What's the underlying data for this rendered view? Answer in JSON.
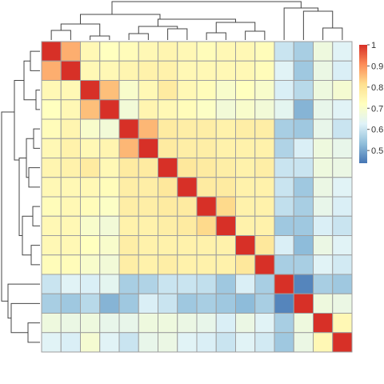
{
  "chart_data": {
    "type": "heatmap",
    "rows": 16,
    "cols": 16,
    "values": [
      [
        1.0,
        0.87,
        0.74,
        0.72,
        0.73,
        0.74,
        0.75,
        0.74,
        0.73,
        0.74,
        0.74,
        0.73,
        0.6,
        0.56,
        0.67,
        0.63
      ],
      [
        0.87,
        1.0,
        0.74,
        0.74,
        0.75,
        0.76,
        0.76,
        0.74,
        0.74,
        0.74,
        0.74,
        0.73,
        0.63,
        0.55,
        0.66,
        0.62
      ],
      [
        0.74,
        0.74,
        1.0,
        0.85,
        0.7,
        0.74,
        0.78,
        0.74,
        0.73,
        0.7,
        0.72,
        0.7,
        0.62,
        0.58,
        0.67,
        0.69
      ],
      [
        0.72,
        0.74,
        0.85,
        1.0,
        0.68,
        0.75,
        0.74,
        0.73,
        0.71,
        0.68,
        0.7,
        0.68,
        0.64,
        0.52,
        0.65,
        0.63
      ],
      [
        0.73,
        0.75,
        0.7,
        0.68,
        1.0,
        0.86,
        0.78,
        0.77,
        0.77,
        0.76,
        0.77,
        0.77,
        0.56,
        0.55,
        0.65,
        0.6
      ],
      [
        0.74,
        0.76,
        0.74,
        0.75,
        0.86,
        1.0,
        0.78,
        0.77,
        0.77,
        0.76,
        0.76,
        0.76,
        0.57,
        0.62,
        0.67,
        0.65
      ],
      [
        0.75,
        0.76,
        0.78,
        0.74,
        0.78,
        0.78,
        1.0,
        0.79,
        0.78,
        0.77,
        0.76,
        0.77,
        0.6,
        0.6,
        0.67,
        0.66
      ],
      [
        0.74,
        0.74,
        0.74,
        0.73,
        0.77,
        0.77,
        0.79,
        1.0,
        0.78,
        0.78,
        0.76,
        0.76,
        0.6,
        0.55,
        0.66,
        0.63
      ],
      [
        0.73,
        0.74,
        0.73,
        0.71,
        0.77,
        0.77,
        0.78,
        0.78,
        1.0,
        0.82,
        0.76,
        0.76,
        0.59,
        0.56,
        0.65,
        0.62
      ],
      [
        0.74,
        0.74,
        0.7,
        0.68,
        0.76,
        0.76,
        0.77,
        0.78,
        0.82,
        1.0,
        0.76,
        0.76,
        0.55,
        0.55,
        0.62,
        0.6
      ],
      [
        0.74,
        0.74,
        0.72,
        0.7,
        0.77,
        0.76,
        0.76,
        0.76,
        0.76,
        0.76,
        1.0,
        0.79,
        0.62,
        0.53,
        0.66,
        0.63
      ],
      [
        0.73,
        0.73,
        0.7,
        0.68,
        0.77,
        0.76,
        0.77,
        0.76,
        0.76,
        0.76,
        0.79,
        1.0,
        0.56,
        0.56,
        0.63,
        0.61
      ],
      [
        0.6,
        0.63,
        0.62,
        0.64,
        0.56,
        0.57,
        0.6,
        0.6,
        0.59,
        0.55,
        0.62,
        0.56,
        1.0,
        0.46,
        0.56,
        0.55
      ],
      [
        0.56,
        0.55,
        0.58,
        0.52,
        0.55,
        0.62,
        0.6,
        0.55,
        0.56,
        0.55,
        0.53,
        0.56,
        0.46,
        1.0,
        0.67,
        0.66
      ],
      [
        0.67,
        0.66,
        0.67,
        0.65,
        0.65,
        0.67,
        0.67,
        0.66,
        0.65,
        0.62,
        0.66,
        0.63,
        0.56,
        0.67,
        1.0,
        0.74
      ],
      [
        0.63,
        0.62,
        0.69,
        0.63,
        0.6,
        0.65,
        0.66,
        0.63,
        0.62,
        0.6,
        0.63,
        0.61,
        0.55,
        0.66,
        0.74,
        1.0
      ]
    ],
    "colorbar": {
      "ticks": [
        "1",
        "0.9",
        "0.8",
        "0.7",
        "0.6",
        "0.5"
      ],
      "tick_values": [
        1.0,
        0.9,
        0.8,
        0.7,
        0.6,
        0.5
      ],
      "min": 0.44,
      "max": 1.0,
      "placement": "right"
    },
    "colors": {
      "palette": [
        "#4575b4",
        "#91bfdb",
        "#e0f3f8",
        "#ffffbf",
        "#fee090",
        "#fc8d59",
        "#d73027"
      ],
      "cell_border": "#9e9e9e",
      "dendrogram_line": "#444444"
    },
    "dendrograms": {
      "rows": true,
      "columns": true,
      "placement": [
        "left",
        "top"
      ]
    }
  }
}
